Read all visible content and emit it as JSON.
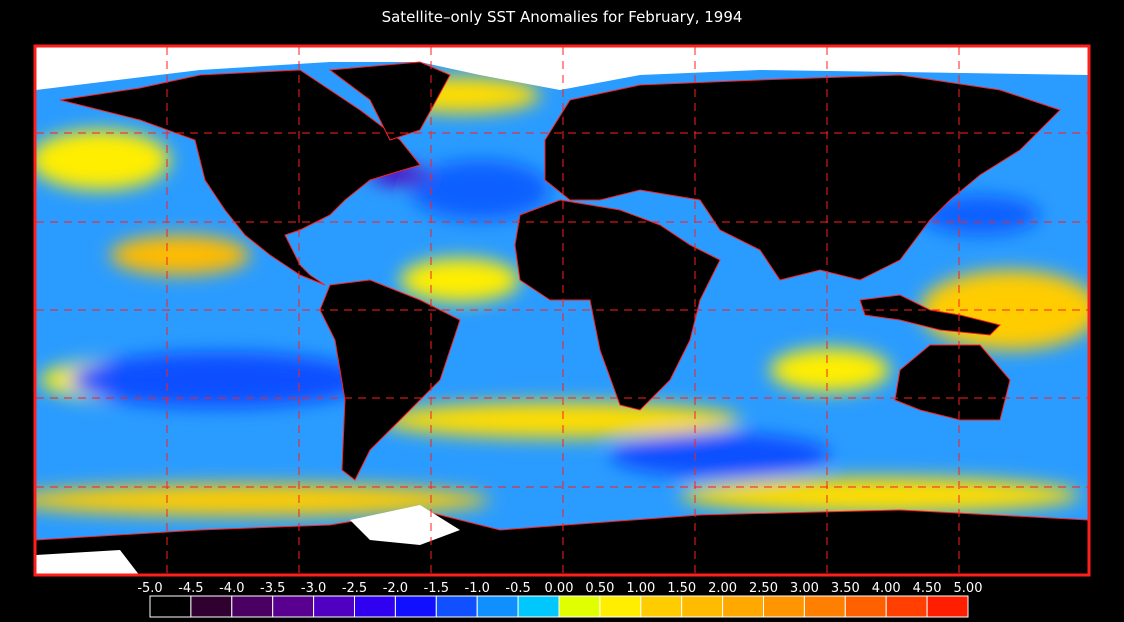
{
  "title": "Satellite–only SST Anomalies for February, 1994",
  "colorbar": {
    "labels": [
      "-5.0",
      "-4.5",
      "-4.0",
      "-3.5",
      "-3.0",
      "-2.5",
      "-2.0",
      "-1.5",
      "-1.0",
      "-0.5",
      "0.00",
      "0.50",
      "1.00",
      "1.50",
      "2.00",
      "2.50",
      "3.00",
      "3.50",
      "4.00",
      "4.50",
      "5.00"
    ],
    "colors": [
      "#000000",
      "#300030",
      "#4a0060",
      "#5a0090",
      "#5000c0",
      "#3000f0",
      "#1010ff",
      "#1050ff",
      "#1090ff",
      "#00c8ff",
      "#e0ff00",
      "#ffee00",
      "#ffcc00",
      "#ffbb00",
      "#ffa800",
      "#ff9500",
      "#ff7f00",
      "#ff6000",
      "#ff4000",
      "#ff1e00"
    ]
  }
}
